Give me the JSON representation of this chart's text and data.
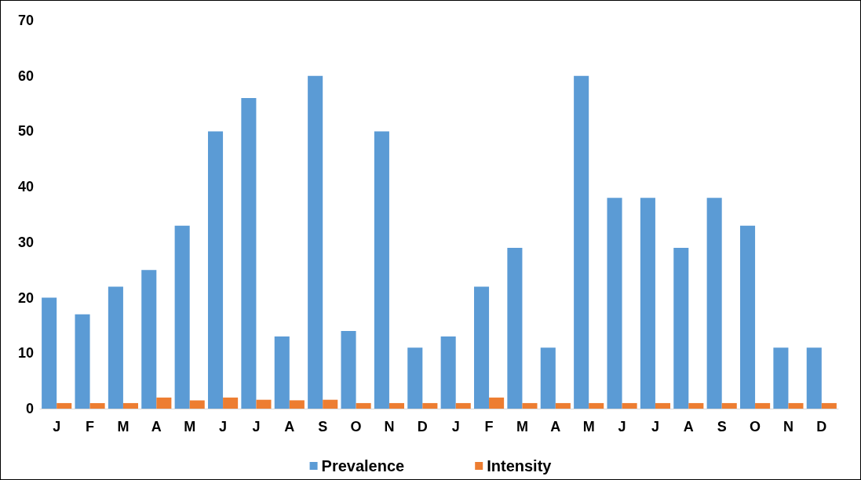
{
  "chart_data": {
    "type": "bar",
    "categories": [
      "J",
      "F",
      "M",
      "A",
      "M",
      "J",
      "J",
      "A",
      "S",
      "O",
      "N",
      "D",
      "J",
      "F",
      "M",
      "A",
      "M",
      "J",
      "J",
      "A",
      "S",
      "O",
      "N",
      "D"
    ],
    "series": [
      {
        "name": "Prevalence",
        "color": "#5b9bd5",
        "values": [
          20,
          17,
          22,
          25,
          33,
          50,
          56,
          13,
          60,
          14,
          50,
          11,
          13,
          22,
          29,
          11,
          60,
          38,
          38,
          29,
          38,
          33,
          11,
          11
        ]
      },
      {
        "name": "Intensity",
        "color": "#ed7d31",
        "values": [
          1,
          1,
          1,
          2,
          1.5,
          2,
          1.6,
          1.5,
          1.6,
          1,
          1,
          1,
          1,
          2,
          1,
          1,
          1,
          1,
          1,
          1,
          1,
          1,
          1,
          1
        ]
      }
    ],
    "ylim": [
      0,
      70
    ],
    "yticks": [
      0,
      10,
      20,
      30,
      40,
      50,
      60,
      70
    ],
    "grid": false,
    "legend": "bottom"
  }
}
